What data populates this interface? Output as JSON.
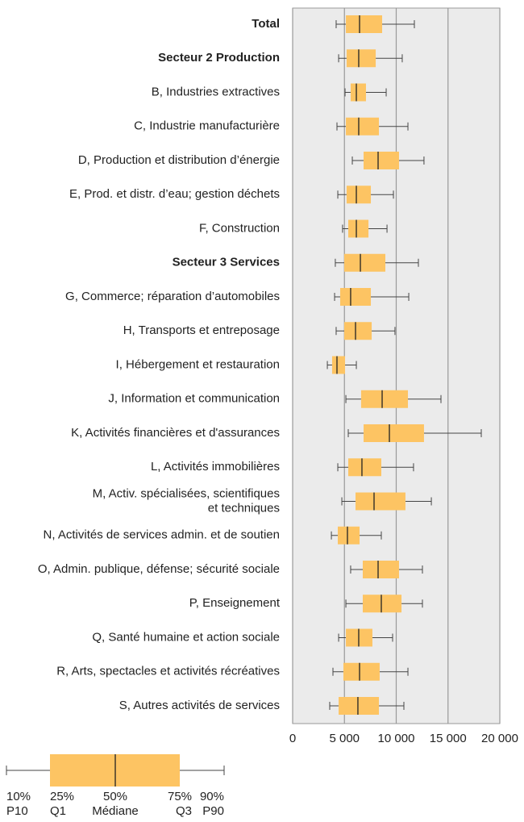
{
  "chart_data": {
    "type": "boxplot",
    "orientation": "horizontal",
    "categories": [
      "Total",
      "Secteur 2  Production",
      "B, Industries extractives",
      "C, Industrie manufacturière",
      "D, Production et distribution d’énergie",
      "E, Prod. et distr. d’eau; gestion déchets",
      "F, Construction",
      "Secteur 3  Services",
      "G, Commerce; réparation d’automobiles",
      "H, Transports et entreposage",
      "I, Hébergement et restauration",
      "J, Information et communication",
      "K, Activités financières et d'assurances",
      "L, Activités immobilières",
      "M, Activ. spécialisées, scientifiques\net techniques",
      "N, Activités de services admin. et de soutien",
      "O, Admin. publique, défense; sécurité sociale",
      "P, Enseignement",
      "Q, Santé humaine et action sociale",
      "R, Arts, spectacles et activités récréatives",
      "S, Autres activités de services"
    ],
    "bold_categories": [
      0,
      1,
      7
    ],
    "p10": [
      4200,
      4440,
      5060,
      4280,
      5760,
      4360,
      4820,
      4120,
      4050,
      4200,
      3350,
      5140,
      5370,
      4360,
      4750,
      3740,
      5600,
      5140,
      4440,
      3890,
      3580
    ],
    "q1": [
      5140,
      5210,
      5600,
      5140,
      6850,
      5210,
      5370,
      4980,
      4590,
      4980,
      3810,
      6610,
      6850,
      5370,
      6070,
      4360,
      6770,
      6770,
      5140,
      4900,
      4440
    ],
    "median": [
      6460,
      6380,
      6150,
      6380,
      8250,
      6150,
      6150,
      6540,
      5600,
      6070,
      4280,
      8640,
      9340,
      6690,
      7860,
      5290,
      8250,
      8560,
      6380,
      6460,
      6300
    ],
    "q3": [
      8640,
      8020,
      7080,
      8330,
      10270,
      7550,
      7320,
      8950,
      7550,
      7630,
      5060,
      11130,
      12680,
      8560,
      10890,
      6460,
      10270,
      10510,
      7700,
      8400,
      8330
    ],
    "p90": [
      11750,
      10580,
      9030,
      11130,
      12680,
      9730,
      9110,
      12140,
      11210,
      9880,
      6150,
      14320,
      18210,
      11670,
      13390,
      8560,
      12530,
      12530,
      9650,
      11130,
      10740
    ],
    "color": "#fdc463",
    "xlim": [
      0,
      20000
    ],
    "xticks": [
      0,
      {
        "value": 5000,
        "label": "5 000"
      },
      {
        "value": 10000,
        "label": "10 000"
      },
      {
        "value": 15000,
        "label": "15 000"
      },
      {
        "value": 20000,
        "label": "20 000"
      }
    ],
    "grid": true,
    "legend": {
      "percents": [
        "10%",
        "25%",
        "50%",
        "75%",
        "90%"
      ],
      "labels": [
        "P10",
        "Q1",
        "Médiane",
        "Q3",
        "P90"
      ]
    }
  }
}
